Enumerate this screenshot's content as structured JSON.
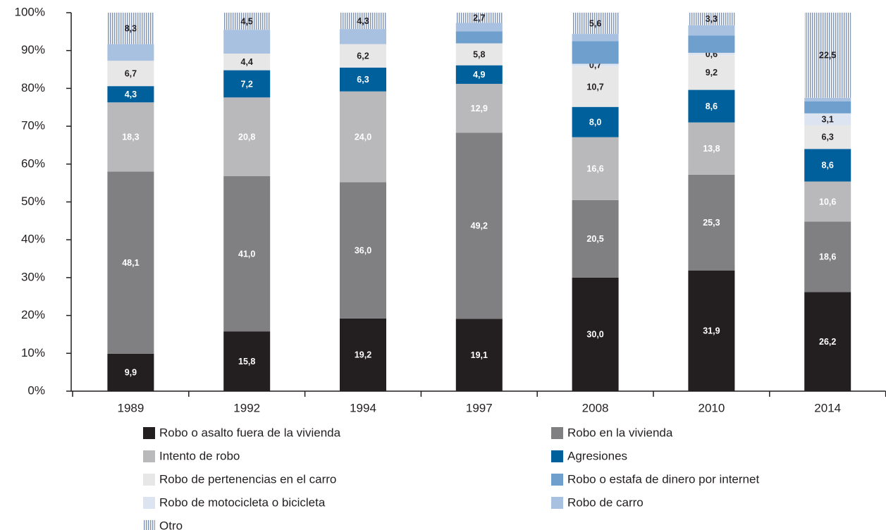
{
  "chart_data": {
    "type": "stacked_bar",
    "categories": [
      "1989",
      "1992",
      "1994",
      "1997",
      "2008",
      "2010",
      "2014"
    ],
    "series": [
      {
        "name": "Robo o asalto fuera de la vivienda",
        "color": "#231f20",
        "values": [
          9.9,
          15.8,
          19.2,
          19.1,
          30.0,
          31.9,
          26.2
        ],
        "value_labels": [
          "9,9",
          "15,8",
          "19,2",
          "19,1",
          "30,0",
          "31,9",
          "26,2"
        ]
      },
      {
        "name": "Robo en la vivienda",
        "color": "#808082",
        "values": [
          48.1,
          41.0,
          36.0,
          49.2,
          20.5,
          25.3,
          18.6
        ],
        "value_labels": [
          "48,1",
          "41,0",
          "36,0",
          "49,2",
          "20,5",
          "25,3",
          "18,6"
        ]
      },
      {
        "name": "Intento de robo",
        "color": "#b9b9bc",
        "values": [
          18.3,
          20.8,
          24.0,
          12.9,
          16.6,
          13.8,
          10.6
        ],
        "value_labels": [
          "18,3",
          "20,8",
          "24,0",
          "12,9",
          "16,6",
          "13,8",
          "10,6"
        ]
      },
      {
        "name": "Agresiones",
        "color": "#00609c",
        "values": [
          4.3,
          7.2,
          6.3,
          4.9,
          8.0,
          8.6,
          8.6
        ],
        "value_labels": [
          "4,3",
          "7,2",
          "6,3",
          "4,9",
          "8,0",
          "8,6",
          "8,6"
        ]
      },
      {
        "name": "Robo de pertenencias en el carro",
        "color": "#e7e7e8",
        "values": [
          6.7,
          4.4,
          6.2,
          5.8,
          10.7,
          9.2,
          6.3
        ],
        "value_labels": [
          "6,7",
          "4,4",
          "6,2",
          "5,8",
          "10,7",
          "9,2",
          "6,3"
        ]
      },
      {
        "name": "Robo de motocicleta o bicicleta",
        "color": "#dde4f1",
        "values": [
          null,
          null,
          null,
          null,
          0.7,
          0.6,
          3.1
        ],
        "value_labels": [
          null,
          null,
          null,
          null,
          "0,7",
          "0,6",
          "3,1"
        ]
      },
      {
        "name": "Robo o estafa de dinero por internet",
        "color": "#6f9fcc",
        "values": [
          null,
          null,
          null,
          3.2,
          6.0,
          4.6,
          3.2
        ],
        "value_labels": [
          null,
          null,
          null,
          null,
          null,
          null,
          null
        ]
      },
      {
        "name": "Robo de carro",
        "color": "#a9c1e1",
        "values": [
          4.4,
          6.3,
          4.0,
          2.2,
          1.9,
          2.7,
          0.9
        ],
        "value_labels": [
          null,
          null,
          null,
          null,
          null,
          null,
          null
        ]
      },
      {
        "name": "Otro",
        "color": "#7f93b5",
        "pattern": "vertical-hatch",
        "values": [
          8.3,
          4.5,
          4.3,
          2.7,
          5.6,
          3.3,
          22.5
        ],
        "value_labels": [
          "8,3",
          "4,5",
          "4,3",
          "2,7",
          "5,6",
          "3,3",
          "22,5"
        ]
      }
    ],
    "ylim": [
      0,
      100
    ],
    "yticks": [
      {
        "value": 0,
        "label": "0%"
      },
      {
        "value": 10,
        "label": "10%"
      },
      {
        "value": 20,
        "label": "20%"
      },
      {
        "value": 30,
        "label": "30%"
      },
      {
        "value": 40,
        "label": "40%"
      },
      {
        "value": 50,
        "label": "50%"
      },
      {
        "value": 60,
        "label": "60%"
      },
      {
        "value": 70,
        "label": "70%"
      },
      {
        "value": 80,
        "label": "80%"
      },
      {
        "value": 90,
        "label": "90%"
      },
      {
        "value": 100,
        "label": "100%"
      }
    ],
    "legend_order": [
      0,
      1,
      2,
      3,
      4,
      6,
      5,
      7,
      8
    ]
  }
}
